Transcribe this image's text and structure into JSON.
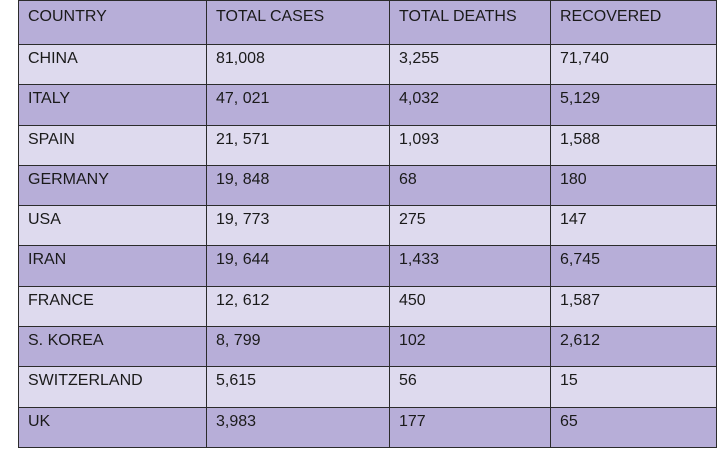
{
  "table": {
    "headers": [
      "COUNTRY",
      "TOTAL CASES",
      "TOTAL DEATHS",
      "RECOVERED"
    ],
    "rows": [
      [
        "CHINA",
        "81,008",
        "3,255",
        "71,740"
      ],
      [
        "ITALY",
        "47, 021",
        "4,032",
        "5,129"
      ],
      [
        "SPAIN",
        "21, 571",
        "1,093",
        "1,588"
      ],
      [
        "GERMANY",
        "19, 848",
        "68",
        "180"
      ],
      [
        "USA",
        "19, 773",
        "275",
        "147"
      ],
      [
        "IRAN",
        "19, 644",
        "1,433",
        "6,745"
      ],
      [
        "FRANCE",
        "12, 612",
        "450",
        "1,587"
      ],
      [
        "S. KOREA",
        "8, 799",
        "102",
        "2,612"
      ],
      [
        "SWITZERLAND",
        "5,615",
        "56",
        "15"
      ],
      [
        "UK",
        "3,983",
        "177",
        "65"
      ]
    ]
  },
  "colors": {
    "dark_row": "#b7aed8",
    "light_row": "#dedaee",
    "border": "#2b2b2b"
  }
}
